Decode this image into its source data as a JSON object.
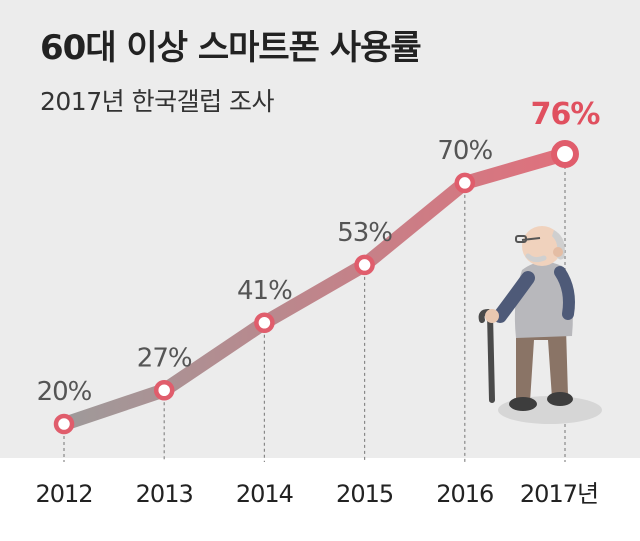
{
  "header": {
    "title": "60대 이상 스마트폰 사용률",
    "subtitle": "2017년 한국갤럽 조사"
  },
  "chart_data": {
    "type": "line",
    "title": "60대 이상 스마트폰 사용률",
    "subtitle": "2017년 한국갤럽 조사",
    "categories": [
      "2012",
      "2013",
      "2014",
      "2015",
      "2016",
      "2017년"
    ],
    "series": [
      {
        "values": [
          20,
          27,
          41,
          53,
          70,
          76
        ],
        "labels": [
          "20%",
          "27%",
          "41%",
          "53%",
          "70%",
          "76%"
        ]
      }
    ],
    "ylim": [
      10,
      80
    ],
    "grid": false,
    "highlight_index": 5,
    "colors": {
      "line_start": "#9e9a9a",
      "line_end": "#e0707c",
      "marker_stroke": "#e05d6c",
      "highlight_label": "#e0505f",
      "label": "#555555",
      "dashed": "#888888"
    }
  },
  "illustration": {
    "icon": "elderly-man-with-cane-icon"
  }
}
